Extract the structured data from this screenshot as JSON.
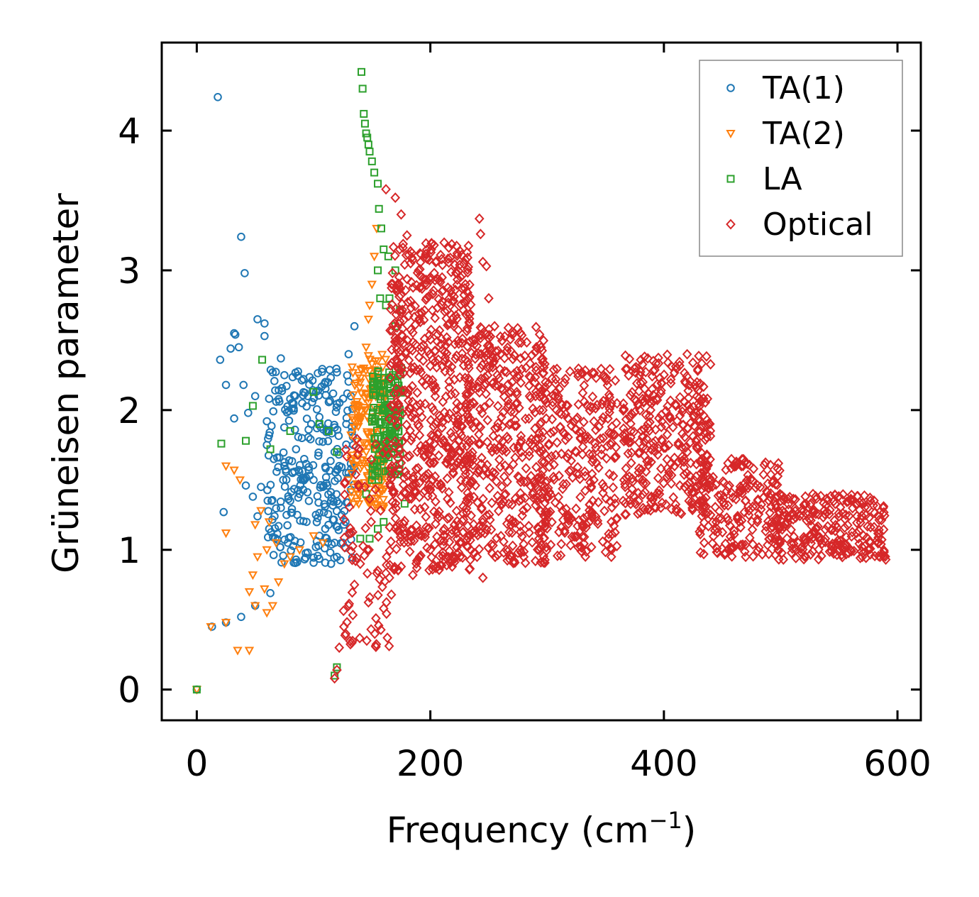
{
  "chart_data": {
    "type": "scatter",
    "xlabel": "Frequency (cm",
    "xlabel_sup": "−1",
    "xlabel_tail": ")",
    "ylabel": "Grüneisen parameter",
    "xlim": [
      -30,
      620
    ],
    "ylim": [
      -0.22,
      4.63
    ],
    "x_ticks": [
      0,
      200,
      400,
      600
    ],
    "y_ticks": [
      0,
      1,
      2,
      3,
      4
    ],
    "x_tick_labels": [
      "0",
      "200",
      "400",
      "600"
    ],
    "y_tick_labels": [
      "0",
      "1",
      "2",
      "3",
      "4"
    ],
    "legend_position": "top-right",
    "series": [
      {
        "name": "TA(1)",
        "marker": "circle",
        "color": "#1f77b4",
        "points": [
          [
            0,
            0
          ],
          [
            13,
            0.45
          ],
          [
            25,
            0.48
          ],
          [
            38,
            0.52
          ],
          [
            50,
            0.6
          ],
          [
            63,
            0.69
          ],
          [
            18,
            4.24
          ],
          [
            38,
            3.24
          ],
          [
            41,
            2.98
          ],
          [
            52,
            2.65
          ],
          [
            58,
            2.62
          ],
          [
            32,
            2.55
          ],
          [
            33,
            2.54
          ],
          [
            29,
            2.44
          ],
          [
            36,
            2.45
          ],
          [
            20,
            2.36
          ],
          [
            58,
            2.53
          ],
          [
            25,
            2.18
          ],
          [
            40,
            2.18
          ],
          [
            50,
            2.1
          ],
          [
            65,
            2.27
          ],
          [
            72,
            2.37
          ],
          [
            75,
            2.25
          ],
          [
            32,
            1.94
          ],
          [
            44,
            1.98
          ],
          [
            60,
            1.92
          ],
          [
            68,
            2.06
          ],
          [
            80,
            2.08
          ],
          [
            95,
            2.1
          ],
          [
            110,
            2.2
          ],
          [
            120,
            2.27
          ],
          [
            130,
            2.4
          ],
          [
            135,
            2.6
          ],
          [
            42,
            1.46
          ],
          [
            48,
            1.38
          ],
          [
            55,
            1.45
          ],
          [
            64,
            1.35
          ],
          [
            72,
            1.3
          ],
          [
            52,
            1.24
          ],
          [
            62,
            1.15
          ],
          [
            70,
            1.17
          ],
          [
            78,
            1.05
          ],
          [
            85,
            0.93
          ],
          [
            95,
            0.98
          ],
          [
            23,
            1.27
          ],
          [
            105,
            1.1
          ],
          [
            115,
            0.9
          ],
          [
            120,
            0.95
          ],
          [
            125,
            1.05
          ],
          [
            75,
            1.6
          ],
          [
            85,
            1.72
          ],
          [
            90,
            1.8
          ],
          [
            98,
            1.9
          ],
          [
            105,
            1.95
          ],
          [
            112,
            1.85
          ],
          [
            118,
            1.7
          ],
          [
            122,
            1.6
          ],
          [
            128,
            1.9
          ],
          [
            132,
            2.1
          ],
          [
            100,
            1.5
          ],
          [
            108,
            1.45
          ],
          [
            115,
            1.35
          ],
          [
            124,
            1.25
          ],
          [
            130,
            1.55
          ],
          [
            82,
            1.55
          ],
          [
            92,
            1.65
          ],
          [
            88,
            1.4
          ],
          [
            96,
            1.35
          ],
          [
            102,
            1.25
          ],
          [
            110,
            1.15
          ],
          [
            118,
            1.05
          ],
          [
            126,
            1.18
          ],
          [
            134,
            1.75
          ],
          [
            60,
            1.75
          ],
          [
            66,
            1.65
          ],
          [
            74,
            1.5
          ],
          [
            80,
            1.35
          ],
          [
            86,
            1.25
          ],
          [
            94,
            1.2
          ]
        ],
        "clusters": [
          {
            "xmin": 60,
            "xmax": 135,
            "ymin": 0.9,
            "ymax": 2.3,
            "n": 260
          }
        ]
      },
      {
        "name": "TA(2)",
        "marker": "triangle",
        "color": "#ff7f0e",
        "points": [
          [
            0,
            0
          ],
          [
            12,
            0.45
          ],
          [
            25,
            0.48
          ],
          [
            35,
            0.28
          ],
          [
            45,
            0.28
          ],
          [
            50,
            0.6
          ],
          [
            60,
            0.55
          ],
          [
            65,
            0.6
          ],
          [
            70,
            0.77
          ],
          [
            58,
            0.72
          ],
          [
            45,
            0.7
          ],
          [
            48,
            0.82
          ],
          [
            52,
            0.95
          ],
          [
            60,
            1.0
          ],
          [
            68,
            1.05
          ],
          [
            75,
            0.9
          ],
          [
            80,
            0.95
          ],
          [
            88,
            1.0
          ],
          [
            100,
            1.1
          ],
          [
            108,
            1.05
          ],
          [
            25,
            1.12
          ],
          [
            25,
            1.6
          ],
          [
            32,
            1.57
          ],
          [
            37,
            1.5
          ],
          [
            50,
            1.18
          ],
          [
            55,
            1.28
          ],
          [
            62,
            1.2
          ],
          [
            143,
            2.3
          ],
          [
            145,
            2.45
          ],
          [
            147,
            2.65
          ],
          [
            150,
            2.9
          ],
          [
            152,
            3.1
          ],
          [
            154,
            3.3
          ],
          [
            148,
            2.75
          ],
          [
            140,
            2.2
          ],
          [
            138,
            2.0
          ],
          [
            144,
            2.0
          ],
          [
            149,
            1.8
          ],
          [
            152,
            1.6
          ],
          [
            156,
            1.4
          ],
          [
            160,
            1.3
          ],
          [
            163,
            1.5
          ],
          [
            135,
            1.6
          ],
          [
            138,
            1.4
          ],
          [
            130,
            1.5
          ]
        ],
        "clusters": [
          {
            "xmin": 132,
            "xmax": 162,
            "ymin": 1.3,
            "ymax": 2.4,
            "n": 170
          }
        ]
      },
      {
        "name": "LA",
        "marker": "square",
        "color": "#2ca02c",
        "points": [
          [
            0,
            0
          ],
          [
            118,
            0.1
          ],
          [
            120,
            0.16
          ],
          [
            141,
            4.42
          ],
          [
            142,
            4.3
          ],
          [
            143,
            4.12
          ],
          [
            144,
            4.05
          ],
          [
            145,
            3.98
          ],
          [
            146,
            3.95
          ],
          [
            147,
            3.9
          ],
          [
            148,
            3.85
          ],
          [
            150,
            3.78
          ],
          [
            152,
            3.7
          ],
          [
            155,
            3.62
          ],
          [
            156,
            3.44
          ],
          [
            158,
            3.3
          ],
          [
            160,
            3.15
          ],
          [
            164,
            3.1
          ],
          [
            170,
            3.0
          ],
          [
            155,
            3.0
          ],
          [
            157,
            2.8
          ],
          [
            162,
            2.75
          ],
          [
            165,
            2.8
          ],
          [
            170,
            2.6
          ],
          [
            174,
            2.72
          ],
          [
            175,
            2.3
          ],
          [
            172,
            2.2
          ],
          [
            178,
            1.33
          ],
          [
            155,
            1.15
          ],
          [
            160,
            1.2
          ],
          [
            148,
            1.08
          ],
          [
            140,
            1.08
          ],
          [
            21,
            1.76
          ],
          [
            42,
            1.78
          ],
          [
            48,
            2.03
          ],
          [
            56,
            2.36
          ],
          [
            63,
            1.72
          ],
          [
            80,
            1.85
          ],
          [
            100,
            2.13
          ],
          [
            105,
            1.9
          ],
          [
            113,
            1.85
          ],
          [
            120,
            1.7
          ],
          [
            145,
            1.4
          ],
          [
            150,
            1.5
          ]
        ],
        "clusters": [
          {
            "xmin": 150,
            "xmax": 175,
            "ymin": 1.5,
            "ymax": 2.3,
            "n": 140
          }
        ]
      },
      {
        "name": "Optical",
        "marker": "diamond",
        "color": "#d62728",
        "points": [
          [
            118,
            0.08
          ],
          [
            120,
            0.14
          ],
          [
            122,
            0.3
          ],
          [
            126,
            0.45
          ],
          [
            130,
            0.6
          ],
          [
            135,
            0.75
          ],
          [
            140,
            0.9
          ],
          [
            146,
            1.0
          ],
          [
            155,
            0.85
          ],
          [
            165,
            0.8
          ],
          [
            175,
            0.88
          ],
          [
            185,
            0.82
          ],
          [
            200,
            1.0
          ],
          [
            212,
            1.15
          ],
          [
            225,
            1.05
          ],
          [
            240,
            0.95
          ],
          [
            245,
            0.8
          ],
          [
            265,
            1.0
          ],
          [
            280,
            0.95
          ],
          [
            290,
            0.92
          ],
          [
            162,
            3.58
          ],
          [
            170,
            3.52
          ],
          [
            175,
            3.4
          ],
          [
            180,
            3.25
          ],
          [
            190,
            3.0
          ],
          [
            200,
            2.95
          ],
          [
            210,
            2.85
          ],
          [
            220,
            2.78
          ],
          [
            230,
            2.9
          ],
          [
            242,
            3.37
          ],
          [
            243,
            3.26
          ],
          [
            245,
            3.06
          ],
          [
            248,
            3.03
          ],
          [
            250,
            2.8
          ],
          [
            255,
            2.6
          ],
          [
            260,
            2.4
          ],
          [
            270,
            2.2
          ],
          [
            290,
            2.1
          ],
          [
            298,
            2.33
          ],
          [
            308,
            2.0
          ],
          [
            325,
            1.7
          ],
          [
            340,
            1.5
          ],
          [
            355,
            1.2
          ],
          [
            355,
            0.95
          ],
          [
            365,
            1.35
          ],
          [
            367,
            2.39
          ],
          [
            375,
            2.3
          ],
          [
            390,
            2.15
          ],
          [
            405,
            1.95
          ],
          [
            420,
            1.7
          ],
          [
            435,
            1.45
          ],
          [
            440,
            1.25
          ],
          [
            455,
            1.45
          ],
          [
            462,
            1.63
          ],
          [
            470,
            1.45
          ],
          [
            470,
            0.95
          ],
          [
            480,
            1.2
          ],
          [
            490,
            1.35
          ],
          [
            500,
            1.35
          ],
          [
            520,
            1.32
          ],
          [
            540,
            1.27
          ],
          [
            555,
            1.22
          ],
          [
            565,
            1.12
          ],
          [
            575,
            1.0
          ],
          [
            585,
            0.95
          ],
          [
            590,
            0.93
          ]
        ],
        "clusters": [
          {
            "xmin": 125,
            "xmax": 170,
            "ymin": 0.3,
            "ymax": 1.8,
            "n": 90
          },
          {
            "xmin": 165,
            "xmax": 235,
            "ymin": 0.85,
            "ymax": 3.2,
            "n": 650
          },
          {
            "xmin": 230,
            "xmax": 300,
            "ymin": 0.9,
            "ymax": 2.6,
            "n": 380
          },
          {
            "xmin": 290,
            "xmax": 360,
            "ymin": 0.95,
            "ymax": 2.3,
            "n": 300
          },
          {
            "xmin": 365,
            "xmax": 440,
            "ymin": 1.25,
            "ymax": 2.4,
            "n": 340
          },
          {
            "xmin": 430,
            "xmax": 500,
            "ymin": 0.95,
            "ymax": 1.65,
            "n": 190
          },
          {
            "xmin": 495,
            "xmax": 590,
            "ymin": 0.93,
            "ymax": 1.4,
            "n": 260
          }
        ]
      }
    ]
  }
}
